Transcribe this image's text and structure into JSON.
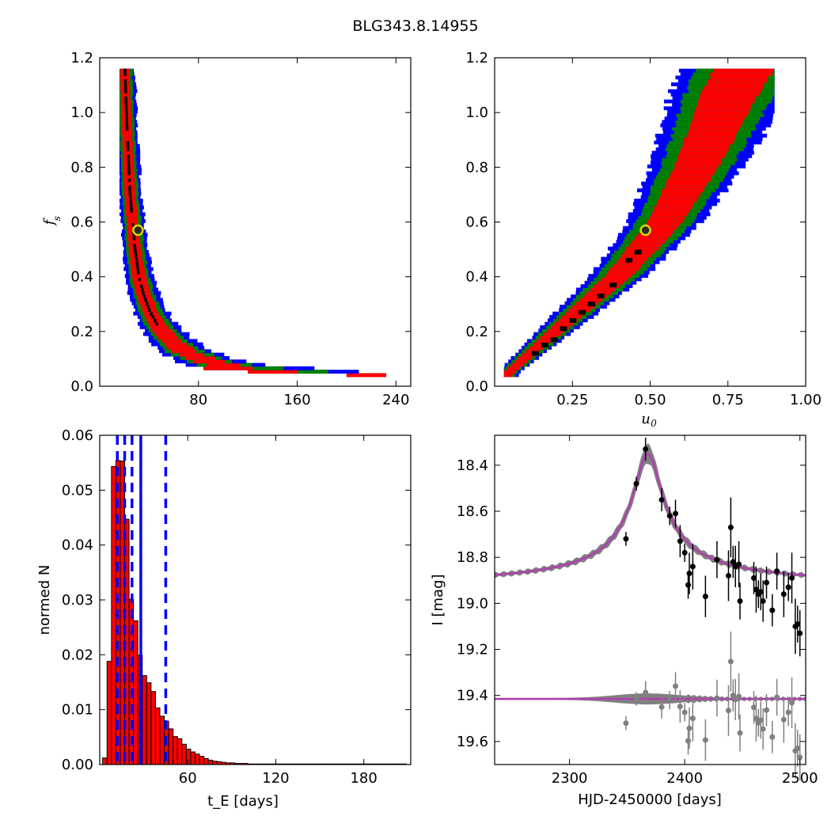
{
  "title": "BLG343.8.14955",
  "colors": {
    "sigma1": "#000000",
    "sigma2": "#ff0000",
    "sigma3": "#008000",
    "sigma4": "#0000ff",
    "best_fit_marker_face": "#2a2a2a",
    "best_fit_marker_edge": "#d8d800",
    "model": "#b040b0",
    "model_band": "#808080",
    "data": "#000000",
    "residuals": "#808080",
    "hist_bar": "#ff0000",
    "hist_line": "#0000ff"
  },
  "chart_data": [
    {
      "id": "fs_vs_tE",
      "type": "heatmap",
      "title": "",
      "xlabel": "",
      "ylabel": "f_s",
      "xlim": [
        0,
        252
      ],
      "ylim": [
        0.0,
        1.2
      ],
      "xticks": [
        80,
        160,
        240
      ],
      "yticks": [
        0.0,
        0.2,
        0.4,
        0.6,
        0.8,
        1.0,
        1.2
      ],
      "levels": [
        "1-sigma (black)",
        "2-sigma (red)",
        "3-sigma (green)",
        "4-sigma (blue)"
      ],
      "ridge": [
        [
          20,
          1.15
        ],
        [
          21,
          1.0
        ],
        [
          22,
          0.9
        ],
        [
          23,
          0.8
        ],
        [
          24,
          0.7
        ],
        [
          26,
          0.6
        ],
        [
          28,
          0.5
        ],
        [
          31,
          0.4
        ],
        [
          35,
          0.33
        ],
        [
          40,
          0.27
        ],
        [
          46,
          0.22
        ],
        [
          55,
          0.17
        ],
        [
          68,
          0.12
        ],
        [
          90,
          0.08
        ],
        [
          120,
          0.055
        ],
        [
          160,
          0.045
        ],
        [
          200,
          0.04
        ],
        [
          230,
          0.038
        ]
      ],
      "best_fit": {
        "x": 31,
        "y": 0.57
      }
    },
    {
      "id": "fs_vs_u0",
      "type": "heatmap",
      "title": "",
      "xlabel": "u_0",
      "ylabel": "",
      "xlim": [
        0.0,
        1.0
      ],
      "ylim": [
        0.0,
        1.2
      ],
      "xticks": [
        0.25,
        0.5,
        0.75,
        1.0
      ],
      "xticklabels": [
        "0.25",
        "0.50",
        "0.75",
        "1.00"
      ],
      "yticks": [
        0.0,
        0.2,
        0.4,
        0.6,
        0.8,
        1.0,
        1.2
      ],
      "levels": [
        "1-sigma (black)",
        "2-sigma (red)",
        "3-sigma (green)",
        "4-sigma (blue)"
      ],
      "ridge": [
        [
          0.04,
          0.04
        ],
        [
          0.1,
          0.1
        ],
        [
          0.2,
          0.2
        ],
        [
          0.3,
          0.3
        ],
        [
          0.4,
          0.4
        ],
        [
          0.5,
          0.53
        ],
        [
          0.55,
          0.6
        ],
        [
          0.6,
          0.7
        ],
        [
          0.65,
          0.8
        ],
        [
          0.7,
          0.92
        ],
        [
          0.75,
          1.05
        ],
        [
          0.8,
          1.15
        ]
      ],
      "one_sigma_cells": [
        [
          0.13,
          0.12
        ],
        [
          0.16,
          0.15
        ],
        [
          0.19,
          0.17
        ],
        [
          0.22,
          0.21
        ],
        [
          0.25,
          0.24
        ],
        [
          0.28,
          0.27
        ],
        [
          0.31,
          0.3
        ],
        [
          0.34,
          0.33
        ],
        [
          0.38,
          0.37
        ],
        [
          0.43,
          0.46
        ],
        [
          0.46,
          0.49
        ]
      ],
      "best_fit": {
        "x": 0.485,
        "y": 0.57
      }
    },
    {
      "id": "tE_histogram",
      "type": "bar",
      "title": "",
      "xlabel": "t_E [days]",
      "ylabel": "normed N",
      "xlim": [
        0,
        212
      ],
      "ylim": [
        0.0,
        0.06
      ],
      "xticks": [
        60,
        120,
        180
      ],
      "yticks": [
        0.0,
        0.01,
        0.02,
        0.03,
        0.04,
        0.05,
        0.06
      ],
      "yticklabels": [
        "0.00",
        "0.01",
        "0.02",
        "0.03",
        "0.04",
        "0.05",
        "0.06"
      ],
      "bin_start": 2,
      "bin_width": 3,
      "values": [
        0.0012,
        0.0188,
        0.0543,
        0.0554,
        0.0553,
        0.0447,
        0.0301,
        0.0262,
        0.0199,
        0.0162,
        0.0149,
        0.0133,
        0.0103,
        0.0088,
        0.0079,
        0.0065,
        0.0051,
        0.0047,
        0.0037,
        0.0028,
        0.0023,
        0.0019,
        0.0015,
        0.0011,
        0.0008,
        0.0006,
        0.0005,
        0.0004,
        0.0003,
        0.0003,
        0.0002,
        0.0002,
        0.0002,
        0.0001,
        0.0001,
        0.0001,
        0.0001,
        0.0001,
        0.0001,
        0.0001,
        0.0001,
        0.0001,
        0.0001,
        0.0001,
        0.0001,
        0.0001,
        0.0001,
        0.0001,
        0.0001,
        0.0001,
        0.0001,
        0.0001,
        0.0001,
        0.0001,
        0.0001,
        0.0001,
        0.0001,
        0.0001,
        0.0001,
        0.0001,
        0.0001,
        0.0001,
        0.0001,
        0.0001,
        0.0001,
        0.0001,
        0.0001,
        0.0001,
        0.0001
      ],
      "vlines_dashed": [
        12,
        17,
        22,
        45
      ],
      "vline_solid": 28
    },
    {
      "id": "light_curve",
      "type": "scatter",
      "title": "",
      "xlabel": "HJD-2450000 [days]",
      "ylabel": "I [mag]",
      "xlim": [
        2235,
        2505
      ],
      "ylim": [
        19.7,
        18.27
      ],
      "y_inverted": true,
      "xticks": [
        2300,
        2400,
        2500
      ],
      "yticks": [
        18.4,
        18.6,
        18.8,
        19.0,
        19.2,
        19.4,
        19.6
      ],
      "model": {
        "baseline": 18.93,
        "peak_time": 2368,
        "peak_mag": 18.35,
        "tE": 22
      },
      "residual_offset": 19.415,
      "data": [
        {
          "x": 2349,
          "y": 18.72,
          "err": 0.03
        },
        {
          "x": 2358,
          "y": 18.48,
          "err": 0.03
        },
        {
          "x": 2366,
          "y": 18.33,
          "err": 0.05
        },
        {
          "x": 2380,
          "y": 18.55,
          "err": 0.05
        },
        {
          "x": 2387,
          "y": 18.62,
          "err": 0.04
        },
        {
          "x": 2392,
          "y": 18.61,
          "err": 0.06
        },
        {
          "x": 2396,
          "y": 18.73,
          "err": 0.07
        },
        {
          "x": 2400,
          "y": 18.78,
          "err": 0.04
        },
        {
          "x": 2403,
          "y": 18.92,
          "err": 0.06
        },
        {
          "x": 2404,
          "y": 18.87,
          "err": 0.09
        },
        {
          "x": 2407,
          "y": 18.84,
          "err": 0.1
        },
        {
          "x": 2418,
          "y": 18.97,
          "err": 0.09
        },
        {
          "x": 2428,
          "y": 18.81,
          "err": 0.08
        },
        {
          "x": 2438,
          "y": 18.88,
          "err": 0.11
        },
        {
          "x": 2440,
          "y": 18.67,
          "err": 0.13
        },
        {
          "x": 2442,
          "y": 18.82,
          "err": 0.07
        },
        {
          "x": 2444,
          "y": 18.84,
          "err": 0.09
        },
        {
          "x": 2447,
          "y": 18.83,
          "err": 0.1
        },
        {
          "x": 2448,
          "y": 18.99,
          "err": 0.08
        },
        {
          "x": 2460,
          "y": 18.89,
          "err": 0.07
        },
        {
          "x": 2462,
          "y": 18.94,
          "err": 0.1
        },
        {
          "x": 2464,
          "y": 18.96,
          "err": 0.06
        },
        {
          "x": 2466,
          "y": 18.95,
          "err": 0.08
        },
        {
          "x": 2468,
          "y": 18.99,
          "err": 0.09
        },
        {
          "x": 2471,
          "y": 18.91,
          "err": 0.07
        },
        {
          "x": 2476,
          "y": 19.03,
          "err": 0.07
        },
        {
          "x": 2480,
          "y": 18.86,
          "err": 0.08
        },
        {
          "x": 2486,
          "y": 18.96,
          "err": 0.1
        },
        {
          "x": 2490,
          "y": 18.93,
          "err": 0.06
        },
        {
          "x": 2493,
          "y": 18.89,
          "err": 0.11
        },
        {
          "x": 2496,
          "y": 19.1,
          "err": 0.12
        },
        {
          "x": 2498,
          "y": 19.09,
          "err": 0.08
        },
        {
          "x": 2500,
          "y": 19.13,
          "err": 0.1
        }
      ]
    }
  ]
}
